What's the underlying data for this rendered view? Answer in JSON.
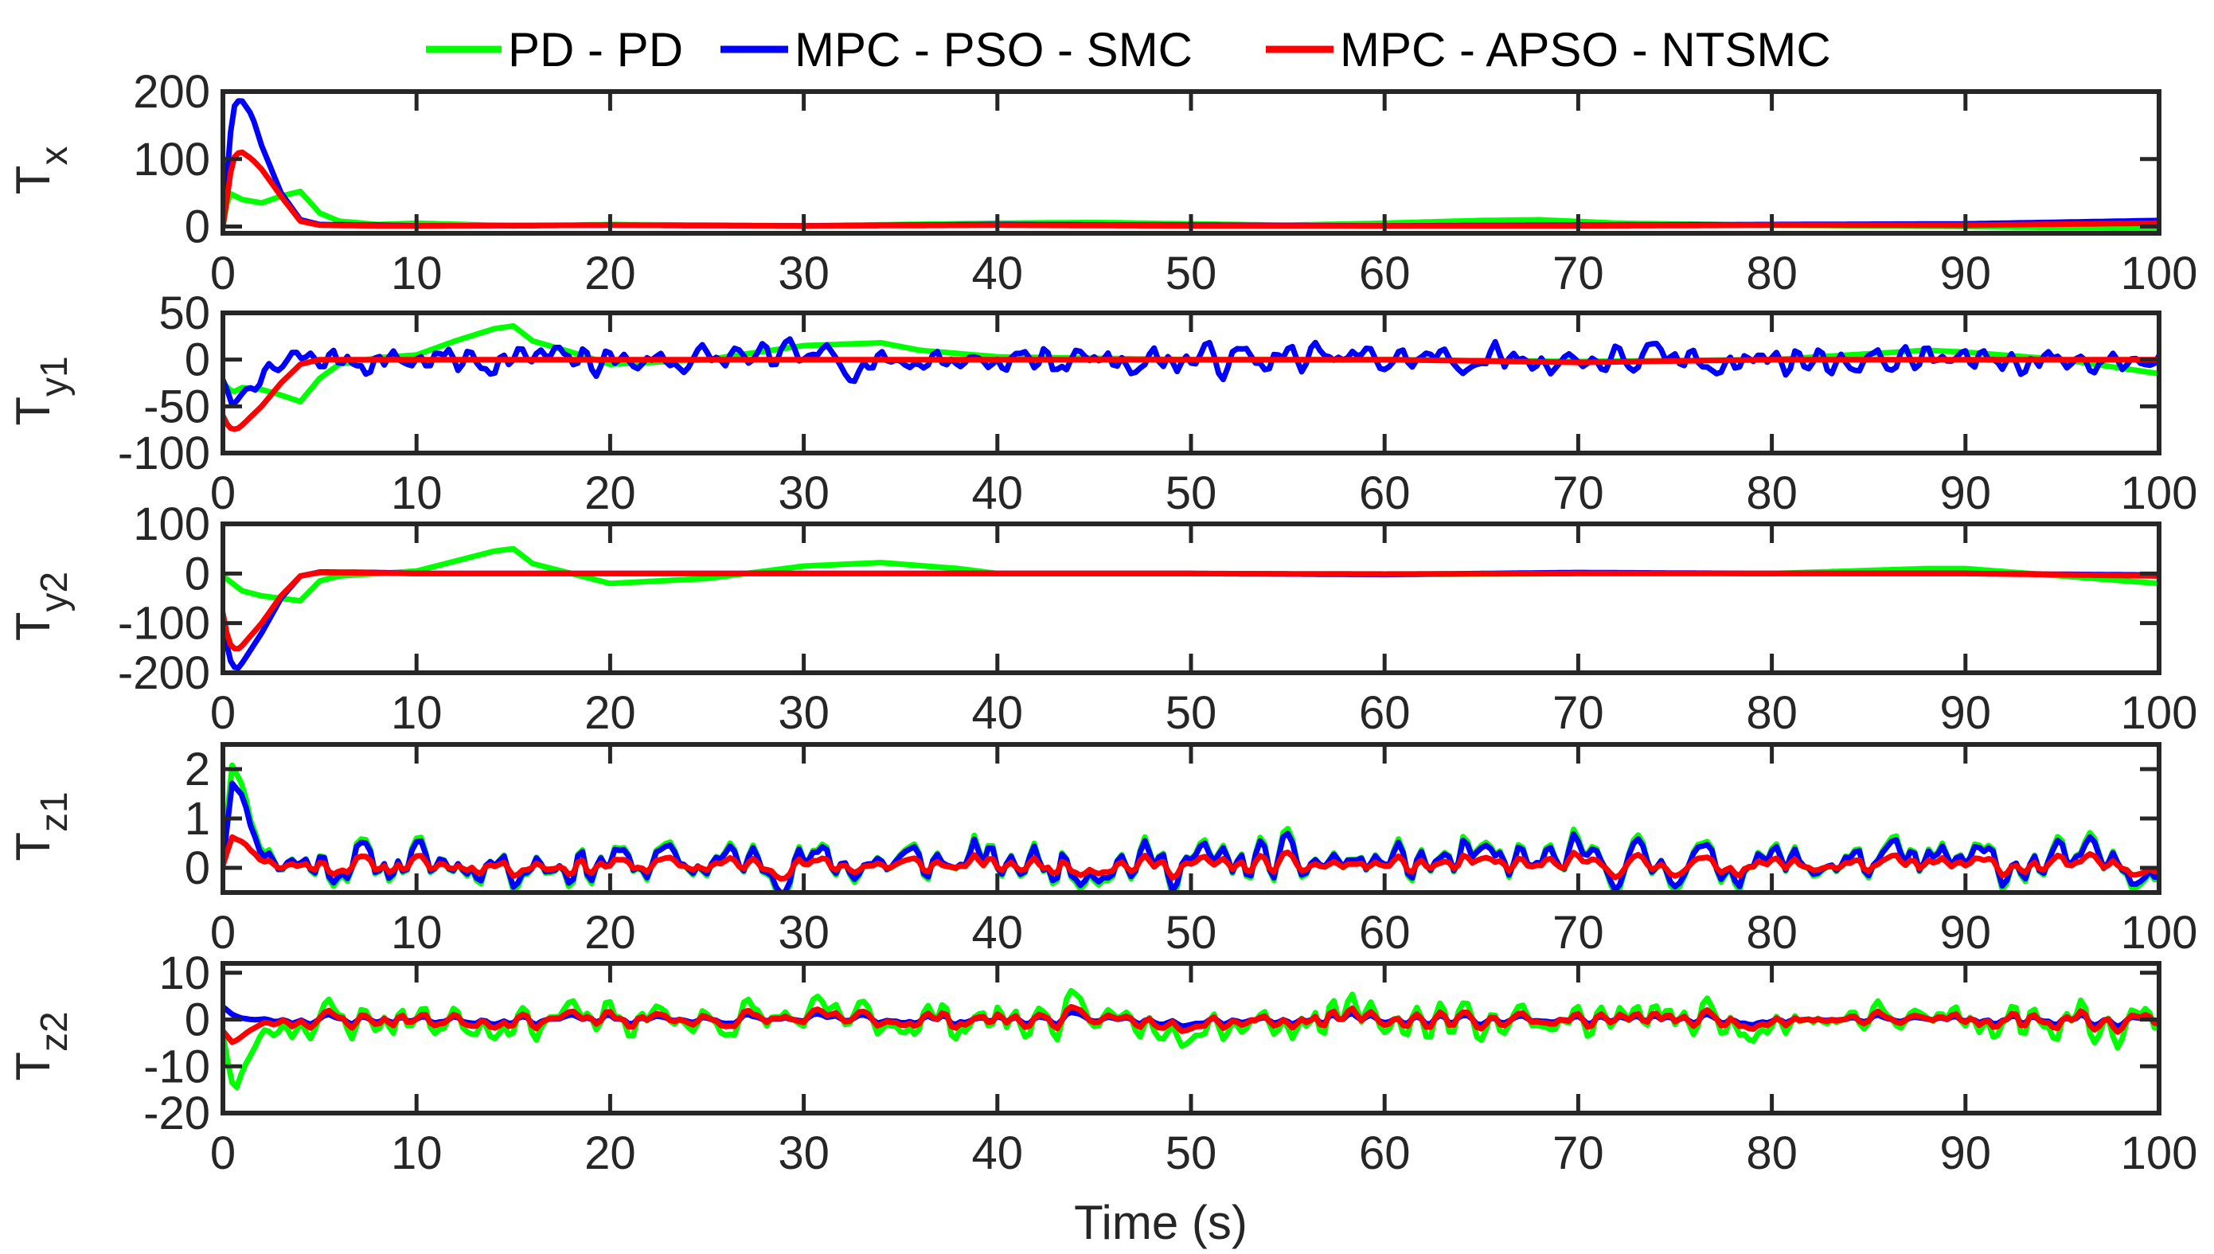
{
  "chart_data": {
    "type": "line",
    "xlabel": "Time (s)",
    "xlim": [
      0,
      100
    ],
    "xticks": [
      0,
      10,
      20,
      30,
      40,
      50,
      60,
      70,
      80,
      90,
      100
    ],
    "legend": {
      "placement": "top",
      "entries": [
        {
          "name": "PD - PD",
          "color": "#00ff00"
        },
        {
          "name": "MPC - PSO - SMC",
          "color": "#0000ff"
        },
        {
          "name": "MPC - APSO - NTSMC",
          "color": "#ff0000"
        }
      ]
    },
    "subplots": [
      {
        "id": "tx",
        "ylabel_main": "T",
        "ylabel_sub": "x",
        "ylim": [
          -10,
          200
        ],
        "yticks": [
          0,
          100,
          200
        ],
        "series": [
          {
            "name": "PD - PD",
            "color": "#00ff00",
            "x": [
              0,
              0.3,
              1,
              2,
              3,
              4,
              5,
              6,
              8,
              10,
              15,
              20,
              25,
              30,
              35,
              40,
              45,
              50,
              55,
              60,
              65,
              68,
              72,
              80,
              90,
              100
            ],
            "y": [
              0,
              50,
              40,
              35,
              45,
              52,
              20,
              8,
              3,
              5,
              1,
              3,
              2,
              1,
              3,
              5,
              6,
              4,
              2,
              5,
              9,
              10,
              5,
              2,
              0,
              -3
            ]
          },
          {
            "name": "MPC - PSO - SMC",
            "color": "#0000ff",
            "x": [
              0,
              0.5,
              0.9,
              1.5,
              2,
              3,
              4,
              5,
              8,
              10,
              20,
              30,
              40,
              50,
              60,
              70,
              80,
              90,
              100
            ],
            "y": [
              0,
              175,
              190,
              165,
              120,
              50,
              10,
              3,
              2,
              1,
              2,
              1,
              3,
              2,
              1,
              2,
              3,
              4,
              9
            ]
          },
          {
            "name": "MPC - APSO - NTSMC",
            "color": "#ff0000",
            "x": [
              0,
              0.5,
              0.9,
              1.5,
              2,
              3,
              4,
              5,
              8,
              10,
              20,
              30,
              40,
              50,
              60,
              70,
              80,
              90,
              100
            ],
            "y": [
              0,
              100,
              112,
              100,
              85,
              45,
              8,
              2,
              1,
              1,
              2,
              1,
              2,
              1,
              1,
              1,
              2,
              2,
              5
            ]
          }
        ]
      },
      {
        "id": "ty1",
        "ylabel_main": "T",
        "ylabel_sub": "y1",
        "ylim": [
          -100,
          50
        ],
        "yticks": [
          -100,
          -50,
          0,
          50
        ],
        "series": [
          {
            "name": "PD - PD",
            "color": "#00ff00",
            "x": [
              0,
              0.5,
              1,
              2,
              3,
              4,
              5,
              6,
              8,
              10,
              12,
              14,
              15,
              16,
              18,
              20,
              25,
              30,
              34,
              36,
              40,
              50,
              60,
              70,
              80,
              88,
              90,
              95,
              100
            ],
            "y": [
              -25,
              -35,
              -30,
              -32,
              -38,
              -45,
              -20,
              -5,
              2,
              5,
              20,
              33,
              36,
              20,
              8,
              -5,
              0,
              15,
              18,
              10,
              3,
              0,
              0,
              -2,
              0,
              10,
              8,
              0,
              -15
            ]
          },
          {
            "name": "MPC - PSO - SMC",
            "color": "#0000ff",
            "noise": {
              "amplitude": 14,
              "seed": 7
            },
            "x": [
              0,
              0.5,
              1,
              2,
              3,
              4,
              5,
              100
            ],
            "y": [
              -20,
              -55,
              -35,
              -20,
              -10,
              0,
              0,
              0
            ]
          },
          {
            "name": "MPC - APSO - NTSMC",
            "color": "#ff0000",
            "x": [
              0,
              0.3,
              0.7,
              1,
              2,
              3,
              4,
              5,
              6,
              8,
              10,
              20,
              30,
              40,
              50,
              60,
              70,
              80,
              90,
              100
            ],
            "y": [
              -60,
              -73,
              -75,
              -70,
              -50,
              -25,
              -5,
              0,
              0,
              0,
              0,
              0,
              0,
              0,
              0,
              0,
              -3,
              0,
              0,
              0
            ]
          }
        ]
      },
      {
        "id": "ty2",
        "ylabel_main": "T",
        "ylabel_sub": "y2",
        "ylim": [
          -200,
          100
        ],
        "yticks": [
          -200,
          -100,
          0,
          100
        ],
        "series": [
          {
            "name": "PD - PD",
            "color": "#00ff00",
            "x": [
              0,
              1,
              2,
              3,
              4,
              5,
              6,
              8,
              10,
              12,
              14,
              15,
              16,
              18,
              20,
              25,
              30,
              34,
              38,
              40,
              50,
              60,
              70,
              80,
              88,
              90,
              95,
              100
            ],
            "y": [
              -5,
              -35,
              -45,
              -50,
              -55,
              -15,
              -5,
              0,
              5,
              25,
              45,
              50,
              20,
              0,
              -20,
              -10,
              15,
              22,
              10,
              0,
              0,
              -2,
              0,
              0,
              10,
              10,
              -5,
              -20
            ]
          },
          {
            "name": "MPC - PSO - SMC",
            "color": "#0000ff",
            "x": [
              0,
              0.3,
              0.7,
              1,
              2,
              3,
              4,
              5,
              8,
              10,
              20,
              30,
              40,
              50,
              60,
              70,
              80,
              90,
              100
            ],
            "y": [
              -90,
              -170,
              -195,
              -180,
              -120,
              -50,
              -5,
              3,
              2,
              0,
              0,
              0,
              0,
              0,
              -2,
              2,
              0,
              0,
              -3
            ]
          },
          {
            "name": "MPC - APSO - NTSMC",
            "color": "#ff0000",
            "x": [
              0,
              0.3,
              0.7,
              1,
              2,
              3,
              4,
              5,
              8,
              10,
              20,
              30,
              40,
              50,
              60,
              70,
              80,
              90,
              100
            ],
            "y": [
              -80,
              -140,
              -155,
              -145,
              -100,
              -45,
              -5,
              2,
              1,
              0,
              0,
              0,
              0,
              0,
              -1,
              0,
              0,
              0,
              -5
            ]
          }
        ]
      },
      {
        "id": "tz1",
        "ylabel_main": "T",
        "ylabel_sub": "z1",
        "ylim": [
          -0.5,
          2.5
        ],
        "yticks": [
          0,
          1,
          2
        ],
        "series": [
          {
            "name": "PD - PD",
            "color": "#00ff00",
            "noise": {
              "amplitude": 0.42,
              "seed": 11
            },
            "x": [
              0,
              0.5,
              1,
              1.5,
              2,
              3,
              5,
              100
            ],
            "y": [
              0.3,
              2.3,
              1.6,
              0.9,
              0.5,
              0.1,
              0.1,
              0.1
            ]
          },
          {
            "name": "MPC - PSO - SMC",
            "color": "#0000ff",
            "noise": {
              "amplitude": 0.36,
              "seed": 11
            },
            "x": [
              0,
              0.5,
              1,
              1.5,
              2,
              3,
              5,
              100
            ],
            "y": [
              0.2,
              1.9,
              1.4,
              0.8,
              0.4,
              0.1,
              0.1,
              0.1
            ]
          },
          {
            "name": "MPC - APSO - NTSMC",
            "color": "#ff0000",
            "noise": {
              "amplitude": 0.16,
              "seed": 11
            },
            "x": [
              0,
              0.5,
              1,
              1.5,
              2,
              3,
              5,
              100
            ],
            "y": [
              0.1,
              0.7,
              0.5,
              0.35,
              0.2,
              0.05,
              0.05,
              0.05
            ]
          }
        ]
      },
      {
        "id": "tz2",
        "ylabel_main": "T",
        "ylabel_sub": "z2",
        "ylim": [
          -20,
          12
        ],
        "yticks": [
          -20,
          -10,
          0,
          10
        ],
        "series": [
          {
            "name": "PD - PD",
            "color": "#00ff00",
            "noise": {
              "amplitude": 3.6,
              "seed": 23
            },
            "x": [
              0,
              0.3,
              0.6,
              1,
              1.5,
              2,
              3,
              4,
              100
            ],
            "y": [
              -2,
              -10,
              -16,
              -12,
              -7,
              -3,
              -1,
              0,
              0
            ]
          },
          {
            "name": "MPC - PSO - SMC",
            "color": "#0000ff",
            "noise": {
              "amplitude": 0.9,
              "seed": 23
            },
            "x": [
              0,
              0.5,
              1,
              2,
              3,
              100
            ],
            "y": [
              3,
              1,
              0,
              0,
              0,
              0
            ]
          },
          {
            "name": "MPC - APSO - NTSMC",
            "color": "#ff0000",
            "noise": {
              "amplitude": 1.6,
              "seed": 23
            },
            "x": [
              0,
              0.5,
              1,
              1.5,
              2,
              3,
              100
            ],
            "y": [
              -2,
              -5,
              -4,
              -2,
              -1,
              0,
              0
            ]
          }
        ]
      }
    ]
  }
}
